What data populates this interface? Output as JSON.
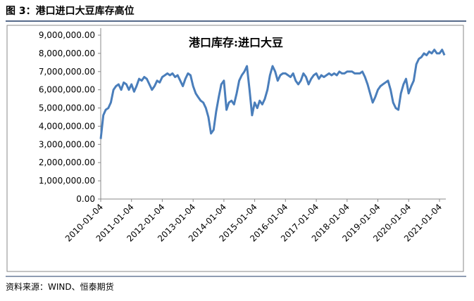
{
  "header": {
    "title": "图 3：港口进口大豆库存高位"
  },
  "chart_data": {
    "type": "line",
    "title": "港口库存:进口大豆",
    "x": [
      "2010-01-04",
      "2010-02-04",
      "2010-03-04",
      "2010-04-04",
      "2010-05-04",
      "2010-06-04",
      "2010-07-04",
      "2010-08-04",
      "2010-09-04",
      "2010-10-04",
      "2010-11-04",
      "2010-12-04",
      "2011-01-04",
      "2011-02-04",
      "2011-03-04",
      "2011-04-04",
      "2011-05-04",
      "2011-06-04",
      "2011-07-04",
      "2011-08-04",
      "2011-09-04",
      "2011-10-04",
      "2011-11-04",
      "2011-12-04",
      "2012-01-04",
      "2012-02-04",
      "2012-03-04",
      "2012-04-04",
      "2012-05-04",
      "2012-06-04",
      "2012-07-04",
      "2012-08-04",
      "2012-09-04",
      "2012-10-04",
      "2012-11-04",
      "2012-12-04",
      "2013-01-04",
      "2013-02-04",
      "2013-03-04",
      "2013-04-04",
      "2013-05-04",
      "2013-06-04",
      "2013-07-04",
      "2013-08-04",
      "2013-09-04",
      "2013-10-04",
      "2013-11-04",
      "2013-12-04",
      "2014-01-04",
      "2014-02-04",
      "2014-03-04",
      "2014-04-04",
      "2014-05-04",
      "2014-06-04",
      "2014-07-04",
      "2014-08-04",
      "2014-09-04",
      "2014-10-04",
      "2014-11-04",
      "2014-12-04",
      "2015-01-04",
      "2015-02-04",
      "2015-03-04",
      "2015-04-04",
      "2015-05-04",
      "2015-06-04",
      "2015-07-04",
      "2015-08-04",
      "2015-09-04",
      "2015-10-04",
      "2015-11-04",
      "2015-12-04",
      "2016-01-04",
      "2016-02-04",
      "2016-03-04",
      "2016-04-04",
      "2016-05-04",
      "2016-06-04",
      "2016-07-04",
      "2016-08-04",
      "2016-09-04",
      "2016-10-04",
      "2016-11-04",
      "2016-12-04",
      "2017-01-04",
      "2017-02-04",
      "2017-03-04",
      "2017-04-04",
      "2017-05-04",
      "2017-06-04",
      "2017-07-04",
      "2017-08-04",
      "2017-09-04",
      "2017-10-04",
      "2017-11-04",
      "2017-12-04",
      "2018-01-04",
      "2018-02-04",
      "2018-03-04",
      "2018-04-04",
      "2018-05-04",
      "2018-06-04",
      "2018-07-04",
      "2018-08-04",
      "2018-09-04",
      "2018-10-04",
      "2018-11-04",
      "2018-12-04",
      "2019-01-04",
      "2019-02-04",
      "2019-03-04",
      "2019-04-04",
      "2019-05-04",
      "2019-06-04",
      "2019-07-04",
      "2019-08-04",
      "2019-09-04",
      "2019-10-04",
      "2019-11-04",
      "2019-12-04",
      "2020-01-04",
      "2020-02-04",
      "2020-03-04",
      "2020-04-04",
      "2020-05-04",
      "2020-06-04",
      "2020-07-04",
      "2020-08-04",
      "2020-09-04",
      "2020-10-04",
      "2020-11-04",
      "2020-12-04",
      "2021-01-04",
      "2021-02-04",
      "2021-03-04"
    ],
    "series": [
      {
        "name": "港口库存:进口大豆",
        "color": "#4a7ebb",
        "values": [
          3300000,
          4600000,
          4900000,
          5000000,
          5300000,
          6000000,
          6200000,
          6300000,
          6000000,
          6400000,
          6300000,
          6000000,
          6300000,
          5900000,
          6200000,
          6600000,
          6500000,
          6700000,
          6600000,
          6300000,
          6000000,
          6200000,
          6500000,
          6400000,
          6700000,
          6800000,
          6900000,
          6800000,
          6900000,
          6700000,
          6800000,
          6500000,
          6200000,
          6600000,
          6900000,
          6800000,
          6200000,
          5800000,
          5600000,
          5400000,
          5300000,
          5000000,
          4500000,
          3600000,
          3800000,
          4800000,
          5600000,
          6300000,
          6500000,
          4900000,
          5300000,
          5400000,
          5200000,
          5800000,
          6500000,
          6800000,
          7000000,
          7300000,
          6000000,
          4600000,
          5300000,
          5000000,
          5400000,
          5200000,
          5500000,
          6000000,
          6800000,
          7300000,
          7000000,
          6500000,
          6800000,
          6900000,
          6900000,
          6800000,
          6700000,
          6900000,
          6500000,
          6300000,
          6500000,
          6900000,
          6700000,
          6300000,
          6600000,
          6800000,
          6900000,
          6600000,
          6800000,
          6700000,
          6800000,
          6900000,
          6800000,
          6900000,
          6800000,
          7000000,
          6900000,
          6900000,
          7000000,
          7000000,
          7000000,
          6900000,
          6900000,
          6900000,
          7000000,
          6700000,
          6300000,
          5800000,
          5300000,
          5600000,
          6000000,
          6200000,
          6300000,
          6400000,
          6500000,
          6000000,
          5300000,
          5000000,
          4900000,
          5800000,
          6300000,
          6600000,
          5800000,
          6200000,
          6500000,
          7400000,
          7700000,
          7800000,
          8000000,
          7900000,
          8100000,
          8000000,
          8200000,
          8000000,
          8000000,
          8200000,
          7900000
        ]
      }
    ],
    "xlim": [
      "2010-01-04",
      "2021-03-20"
    ],
    "xticks": [
      "2010-01-04",
      "2011-01-04",
      "2012-01-04",
      "2013-01-04",
      "2014-01-04",
      "2015-01-04",
      "2016-01-04",
      "2017-01-04",
      "2018-01-04",
      "2019-01-04",
      "2020-01-04",
      "2021-01-04"
    ],
    "ylim": [
      0,
      9000000
    ],
    "yticks": [
      {
        "value": 0,
        "label": "0.00"
      },
      {
        "value": 1000000,
        "label": "1,000,000.00"
      },
      {
        "value": 2000000,
        "label": "2,000,000.00"
      },
      {
        "value": 3000000,
        "label": "3,000,000.00"
      },
      {
        "value": 4000000,
        "label": "4,000,000.00"
      },
      {
        "value": 5000000,
        "label": "5,000,000.00"
      },
      {
        "value": 6000000,
        "label": "6,000,000.00"
      },
      {
        "value": 7000000,
        "label": "7,000,000.00"
      },
      {
        "value": 8000000,
        "label": "8,000,000.00"
      },
      {
        "value": 9000000,
        "label": "9,000,000.00"
      }
    ],
    "grid": false
  },
  "footer": {
    "source": "资料来源：WIND、恒泰期货"
  }
}
